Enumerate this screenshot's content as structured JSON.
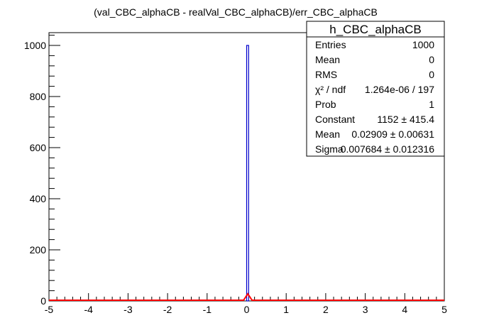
{
  "chart_data": {
    "type": "bar",
    "title": "(val_CBC_alphaCB - realVal_CBC_alphaCB)/err_CBC_alphaCB",
    "xlabel": "",
    "ylabel": "",
    "xlim": [
      -5,
      5
    ],
    "ylim": [
      0,
      1050
    ],
    "bin_width": 0.05,
    "x_ticks": [
      {
        "v": -5,
        "label": "-5"
      },
      {
        "v": -4,
        "label": "-4"
      },
      {
        "v": -3,
        "label": "-3"
      },
      {
        "v": -2,
        "label": "-2"
      },
      {
        "v": -1,
        "label": "-1"
      },
      {
        "v": 0,
        "label": "0"
      },
      {
        "v": 1,
        "label": "1"
      },
      {
        "v": 2,
        "label": "2"
      },
      {
        "v": 3,
        "label": "3"
      },
      {
        "v": 4,
        "label": "4"
      },
      {
        "v": 5,
        "label": "5"
      }
    ],
    "y_ticks": [
      {
        "v": 0,
        "label": "0"
      },
      {
        "v": 200,
        "label": "200"
      },
      {
        "v": 400,
        "label": "400"
      },
      {
        "v": 600,
        "label": "600"
      },
      {
        "v": 800,
        "label": "800"
      },
      {
        "v": 1000,
        "label": "1000"
      }
    ],
    "histogram": [
      {
        "x": 0.0,
        "y": 1000
      }
    ],
    "fit": {
      "name": "gaussian",
      "constant": 1152,
      "mean": 0.02909,
      "sigma": 0.007684,
      "color": "#ff0000"
    },
    "colors": {
      "histogram": "#0000cc",
      "fit": "#ff0000",
      "axis": "#000000"
    },
    "grid": false
  },
  "stats_box": {
    "title": "h_CBC_alphaCB",
    "rows": [
      {
        "label": "Entries",
        "value": "1000"
      },
      {
        "label": "Mean",
        "value": "0"
      },
      {
        "label": "RMS",
        "value": "0"
      },
      {
        "label": "χ² / ndf",
        "value": "1.264e-06 / 197"
      },
      {
        "label": "Prob",
        "value": "1"
      },
      {
        "label": "Constant",
        "value": "1152 ± 415.4"
      },
      {
        "label": "Mean",
        "value": "0.02909 ± 0.00631"
      },
      {
        "label": "Sigma",
        "value": "0.007684 ± 0.012316"
      }
    ]
  }
}
